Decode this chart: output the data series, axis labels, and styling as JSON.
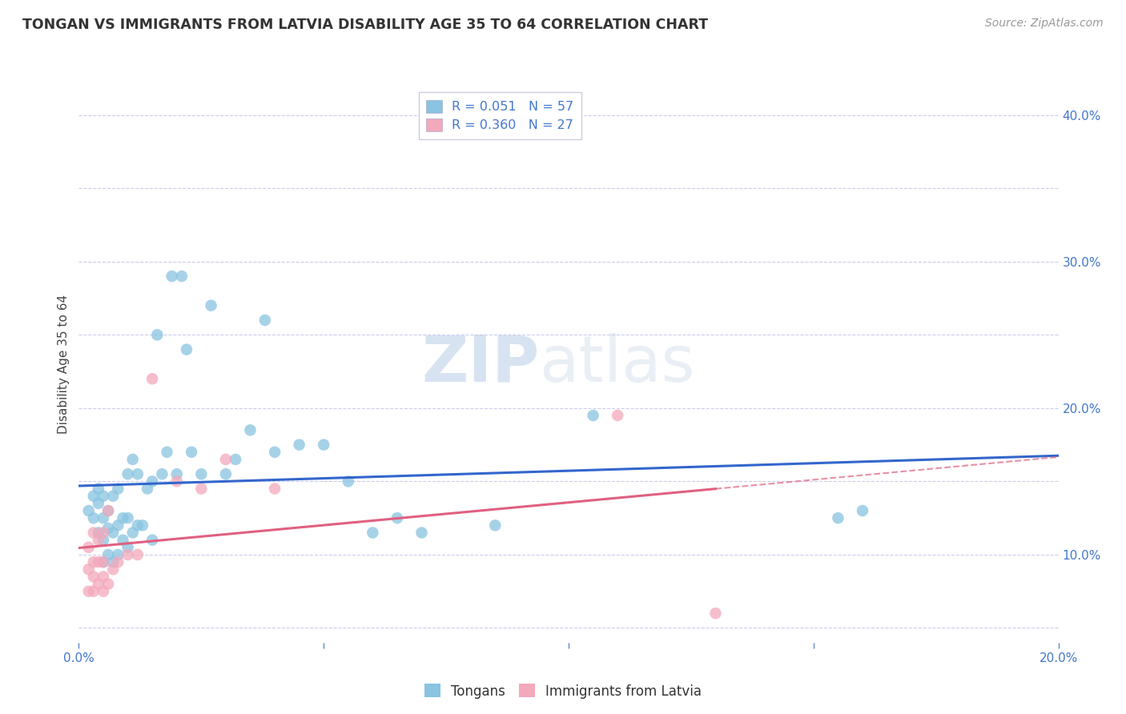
{
  "title": "TONGAN VS IMMIGRANTS FROM LATVIA DISABILITY AGE 35 TO 64 CORRELATION CHART",
  "source": "Source: ZipAtlas.com",
  "ylabel": "Disability Age 35 to 64",
  "legend_R": [
    0.051,
    0.36
  ],
  "legend_N": [
    57,
    27
  ],
  "blue_color": "#89c4e1",
  "pink_color": "#f4a8bb",
  "line_blue": "#3366cc",
  "line_pink": "#e06080",
  "axis_label_color": "#4477cc",
  "title_color": "#333333",
  "source_color": "#999999",
  "background": "#ffffff",
  "grid_color": "#ccccee",
  "xmin": 0.0,
  "xmax": 0.2,
  "ymin": 0.04,
  "ymax": 0.42,
  "tongans_x": [
    0.002,
    0.003,
    0.003,
    0.004,
    0.004,
    0.004,
    0.005,
    0.005,
    0.005,
    0.005,
    0.006,
    0.006,
    0.006,
    0.007,
    0.007,
    0.007,
    0.008,
    0.008,
    0.008,
    0.009,
    0.009,
    0.01,
    0.01,
    0.01,
    0.011,
    0.011,
    0.012,
    0.012,
    0.013,
    0.014,
    0.015,
    0.015,
    0.016,
    0.017,
    0.018,
    0.019,
    0.02,
    0.021,
    0.022,
    0.023,
    0.025,
    0.027,
    0.03,
    0.032,
    0.035,
    0.038,
    0.04,
    0.045,
    0.05,
    0.055,
    0.06,
    0.065,
    0.07,
    0.085,
    0.105,
    0.155,
    0.16
  ],
  "tongans_y": [
    0.13,
    0.125,
    0.14,
    0.115,
    0.135,
    0.145,
    0.095,
    0.11,
    0.125,
    0.14,
    0.1,
    0.118,
    0.13,
    0.095,
    0.115,
    0.14,
    0.1,
    0.12,
    0.145,
    0.11,
    0.125,
    0.105,
    0.125,
    0.155,
    0.115,
    0.165,
    0.12,
    0.155,
    0.12,
    0.145,
    0.11,
    0.15,
    0.25,
    0.155,
    0.17,
    0.29,
    0.155,
    0.29,
    0.24,
    0.17,
    0.155,
    0.27,
    0.155,
    0.165,
    0.185,
    0.26,
    0.17,
    0.175,
    0.175,
    0.15,
    0.115,
    0.125,
    0.115,
    0.12,
    0.195,
    0.125,
    0.13
  ],
  "latvia_x": [
    0.002,
    0.002,
    0.002,
    0.003,
    0.003,
    0.003,
    0.003,
    0.004,
    0.004,
    0.004,
    0.005,
    0.005,
    0.005,
    0.005,
    0.006,
    0.006,
    0.007,
    0.008,
    0.01,
    0.012,
    0.015,
    0.02,
    0.025,
    0.03,
    0.04,
    0.11,
    0.13
  ],
  "latvia_y": [
    0.075,
    0.09,
    0.105,
    0.075,
    0.085,
    0.095,
    0.115,
    0.08,
    0.095,
    0.11,
    0.075,
    0.085,
    0.095,
    0.115,
    0.08,
    0.13,
    0.09,
    0.095,
    0.1,
    0.1,
    0.22,
    0.15,
    0.145,
    0.165,
    0.145,
    0.195,
    0.06
  ],
  "watermark_zip": "ZIP",
  "watermark_atlas": "atlas"
}
